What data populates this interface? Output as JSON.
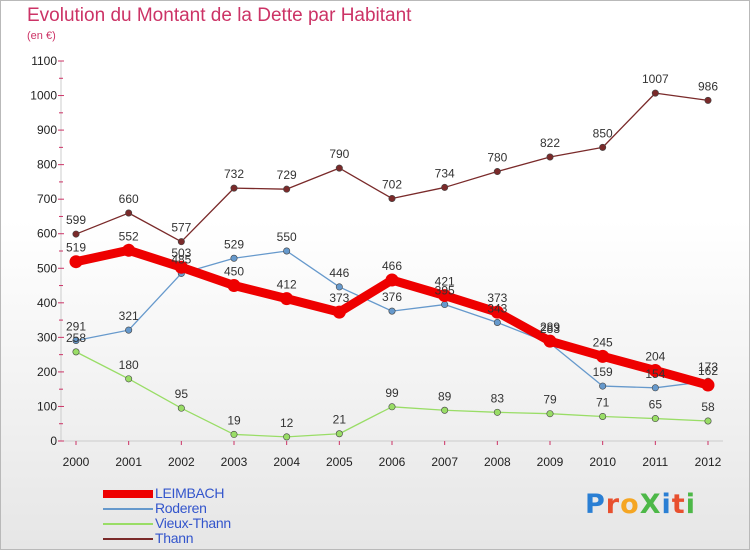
{
  "title": "Evolution du Montant de la Dette par Habitant",
  "subtitle": "(en €)",
  "logo": {
    "text": "ProXiti",
    "colors": [
      "#2a7fd4",
      "#e8502f",
      "#f5a623",
      "#4db848",
      "#2a7fd4",
      "#e8502f",
      "#4db848"
    ]
  },
  "chart_data": {
    "type": "line",
    "x": [
      2000,
      2001,
      2002,
      2003,
      2004,
      2005,
      2006,
      2007,
      2008,
      2009,
      2010,
      2011,
      2012
    ],
    "ylim": [
      0,
      1100
    ],
    "yticks": [
      0,
      100,
      200,
      300,
      400,
      500,
      600,
      700,
      800,
      900,
      1000,
      1100
    ],
    "grid": false,
    "legend_position": "bottom-left",
    "series": [
      {
        "name": "LEIMBACH",
        "color": "#ee0000",
        "values": [
          519,
          552,
          503,
          450,
          412,
          373,
          466,
          421,
          373,
          289,
          245,
          204,
          162
        ]
      },
      {
        "name": "Roderen",
        "color": "#6699cc",
        "values": [
          291,
          321,
          485,
          529,
          550,
          446,
          376,
          395,
          343,
          283,
          159,
          154,
          173
        ]
      },
      {
        "name": "Vieux-Thann",
        "color": "#99dd66",
        "values": [
          258,
          180,
          95,
          19,
          12,
          21,
          99,
          89,
          83,
          79,
          71,
          65,
          58
        ]
      },
      {
        "name": "Thann",
        "color": "#7a2a2a",
        "values": [
          599,
          660,
          577,
          732,
          729,
          790,
          702,
          734,
          780,
          822,
          850,
          1007,
          986
        ]
      }
    ]
  }
}
